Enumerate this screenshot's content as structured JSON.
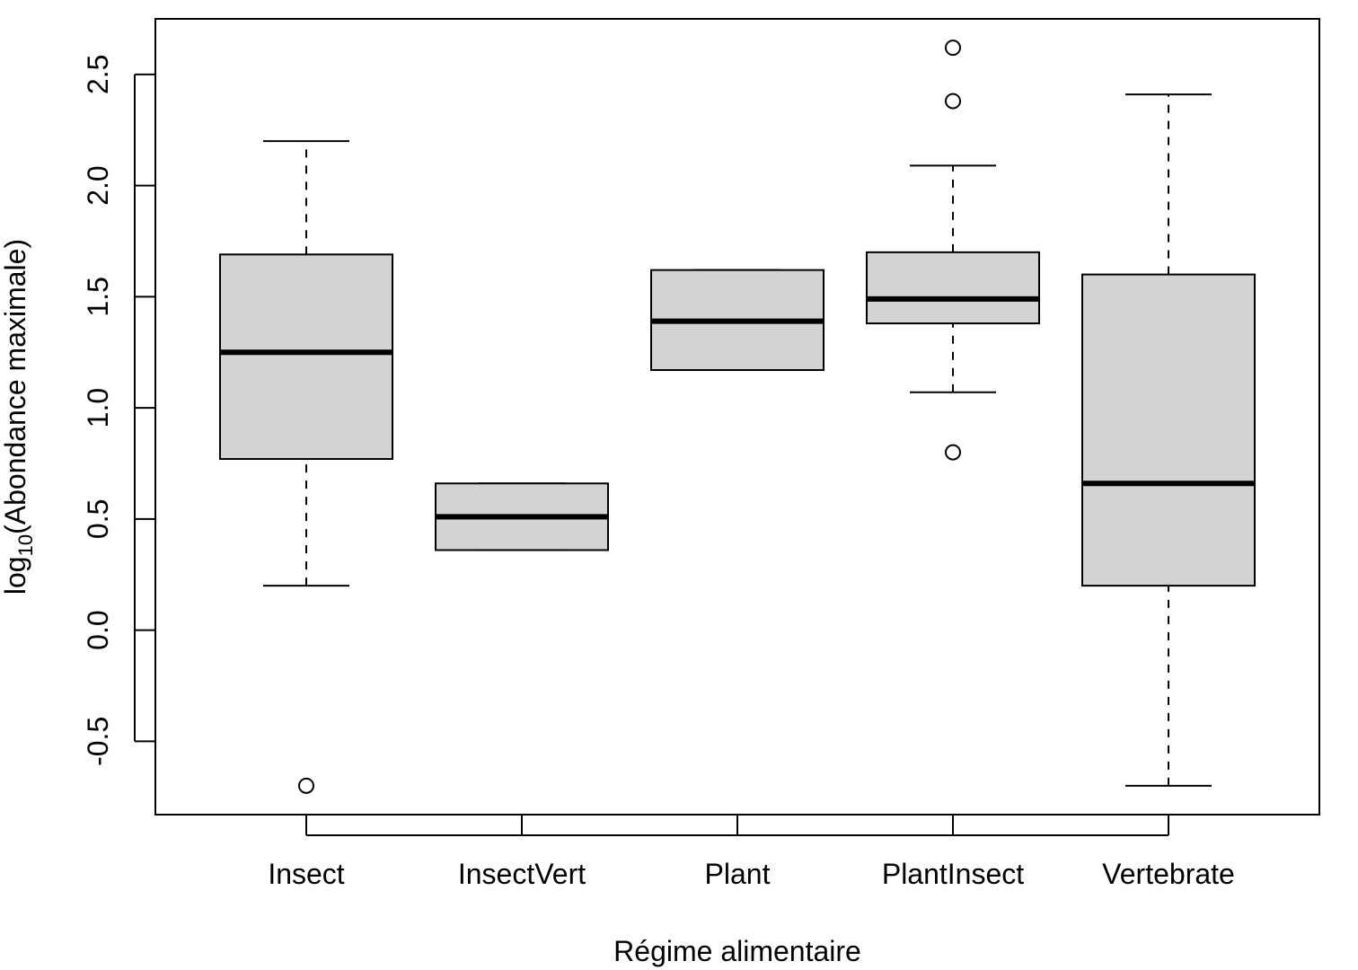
{
  "chart_data": {
    "type": "boxplot",
    "xlabel": "Régime alimentaire",
    "ylabel": {
      "prefix": "log",
      "subscript": "10",
      "suffix": "(Abondance maximale)"
    },
    "ylim": [
      -0.83,
      2.75
    ],
    "yticks": [
      -0.5,
      0.0,
      0.5,
      1.0,
      1.5,
      2.0,
      2.5
    ],
    "ytick_labels": [
      "-0.5",
      "0.0",
      "0.5",
      "1.0",
      "1.5",
      "2.0",
      "2.5"
    ],
    "box_fill": "#d3d3d3",
    "categories": [
      "Insect",
      "InsectVert",
      "Plant",
      "PlantInsect",
      "Vertebrate"
    ],
    "boxes": [
      {
        "category": "Insect",
        "whisker_low": 0.2,
        "q1": 0.77,
        "median": 1.25,
        "q3": 1.69,
        "whisker_high": 2.2,
        "outliers": [
          -0.7
        ]
      },
      {
        "category": "InsectVert",
        "whisker_low": 0.36,
        "q1": 0.36,
        "median": 0.51,
        "q3": 0.66,
        "whisker_high": 0.66,
        "outliers": []
      },
      {
        "category": "Plant",
        "whisker_low": 1.17,
        "q1": 1.17,
        "median": 1.39,
        "q3": 1.62,
        "whisker_high": 1.62,
        "outliers": []
      },
      {
        "category": "PlantInsect",
        "whisker_low": 1.07,
        "q1": 1.38,
        "median": 1.49,
        "q3": 1.7,
        "whisker_high": 2.09,
        "outliers": [
          0.8,
          2.38,
          2.62
        ]
      },
      {
        "category": "Vertebrate",
        "whisker_low": -0.7,
        "q1": 0.2,
        "median": 0.66,
        "q3": 1.6,
        "whisker_high": 2.41,
        "outliers": []
      }
    ]
  }
}
